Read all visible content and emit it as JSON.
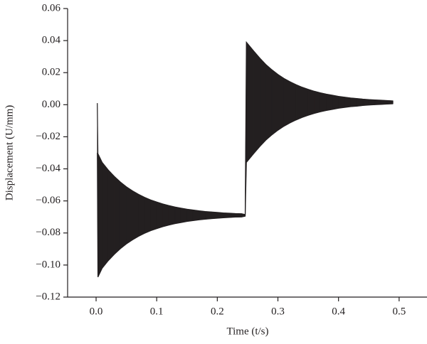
{
  "chart_data": {
    "type": "band",
    "x_label": "Time (t/s)",
    "y_label": "Displacement (U/mm)",
    "xlim": [
      -0.047,
      0.546
    ],
    "ylim": [
      -0.12,
      0.06
    ],
    "xticks": [
      {
        "value": 0,
        "label": "0.0"
      },
      0.1,
      0.2,
      0.3,
      0.4,
      0.5
    ],
    "yticks": [
      0.06,
      0.04,
      0.02,
      {
        "value": 0,
        "label": "0.00"
      },
      {
        "value": -0.02,
        "label": "−0.02"
      },
      {
        "value": -0.04,
        "label": "−0.04"
      },
      {
        "value": -0.06,
        "label": "−0.06"
      },
      {
        "value": -0.08,
        "label": "−0.08"
      },
      {
        "value": -0.1,
        "label": "−0.10"
      },
      {
        "value": -0.12,
        "label": "−0.12"
      }
    ],
    "x": [
      0.002,
      0.003,
      0.01,
      0.02,
      0.03,
      0.04,
      0.05,
      0.06,
      0.07,
      0.08,
      0.09,
      0.1,
      0.11,
      0.12,
      0.13,
      0.14,
      0.15,
      0.16,
      0.17,
      0.18,
      0.19,
      0.2,
      0.21,
      0.22,
      0.23,
      0.24,
      0.246,
      0.248,
      0.26,
      0.27,
      0.28,
      0.29,
      0.3,
      0.31,
      0.32,
      0.33,
      0.34,
      0.35,
      0.36,
      0.37,
      0.38,
      0.39,
      0.4,
      0.41,
      0.42,
      0.43,
      0.44,
      0.45,
      0.46,
      0.47,
      0.48,
      0.49
    ],
    "series": [
      {
        "color": "#231f20",
        "values": [
          0.001,
          -0.0305,
          -0.036,
          -0.0407,
          -0.0447,
          -0.0482,
          -0.0512,
          -0.0537,
          -0.0559,
          -0.0578,
          -0.0594,
          -0.0607,
          -0.0619,
          -0.0629,
          -0.0638,
          -0.0645,
          -0.0652,
          -0.0657,
          -0.0662,
          -0.0666,
          -0.0669,
          -0.0672,
          -0.0675,
          -0.0677,
          -0.0679,
          -0.068,
          -0.0685,
          0.039,
          0.0335,
          0.0291,
          0.0251,
          0.0218,
          0.0189,
          0.0164,
          0.0143,
          0.0125,
          0.0109,
          0.0096,
          0.0084,
          0.0074,
          0.0066,
          0.0059,
          0.0052,
          0.0047,
          0.0042,
          0.0039,
          0.0035,
          0.0032,
          0.003,
          0.0028,
          0.0026,
          0.0024
        ]
      },
      {
        "color": "#231f20",
        "values": [
          -0.03,
          -0.1075,
          -0.102,
          -0.0973,
          -0.0933,
          -0.0898,
          -0.0868,
          -0.0843,
          -0.0821,
          -0.0802,
          -0.0786,
          -0.0773,
          -0.0761,
          -0.0751,
          -0.0742,
          -0.0735,
          -0.0728,
          -0.0723,
          -0.0718,
          -0.0714,
          -0.0711,
          -0.0708,
          -0.0705,
          -0.0703,
          -0.0701,
          -0.07,
          -0.0695,
          -0.036,
          -0.0305,
          -0.0261,
          -0.0221,
          -0.0188,
          -0.0159,
          -0.0134,
          -0.0113,
          -0.0095,
          -0.0079,
          -0.0066,
          -0.0054,
          -0.0044,
          -0.0036,
          -0.0029,
          -0.0022,
          -0.0017,
          -0.0012,
          -0.0009,
          -0.0005,
          -0.0002,
          0,
          0.0002,
          0.0004,
          0.0006
        ]
      }
    ]
  }
}
